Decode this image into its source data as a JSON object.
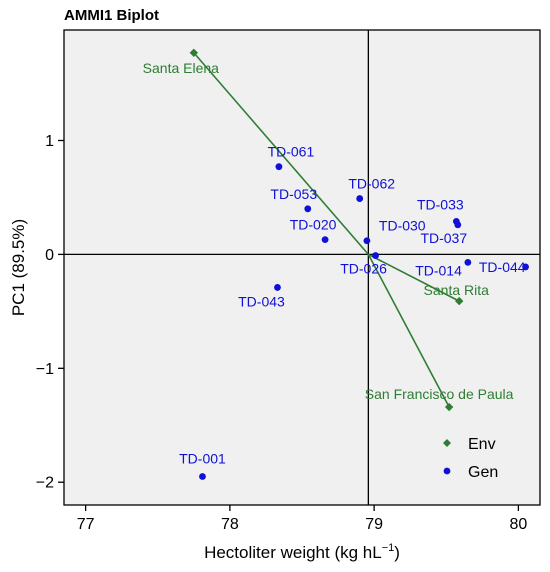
{
  "chart_data": {
    "type": "scatter",
    "title": "AMMI1 Biplot",
    "xlabel": "Hectoliter weight (kg hL",
    "xlabel_sup": "−1",
    "xlabel_close": ")",
    "ylabel": "PC1 (89.5%)",
    "xlim": [
      76.85,
      80.15
    ],
    "ylim": [
      -2.2,
      1.97
    ],
    "x_ticks": [
      77,
      78,
      79,
      80
    ],
    "y_ticks": [
      -2,
      -1,
      0,
      1
    ],
    "x_tick_labels": [
      "77",
      "78",
      "79",
      "80"
    ],
    "y_tick_labels": [
      "−2",
      "−1",
      "0",
      "1"
    ],
    "grand_mean": 78.96,
    "plot_background": "#f0f0f0",
    "legend": {
      "position": "bottom-right",
      "entries": [
        {
          "label": "Env",
          "color": "#2e7d32",
          "marker": "diamond"
        },
        {
          "label": "Gen",
          "color": "#1010d8",
          "marker": "circle"
        }
      ]
    },
    "series": [
      {
        "name": "Gen",
        "color": "#1010d8",
        "points": [
          {
            "label": "TD-001",
            "x": 77.81,
            "y": -1.95
          },
          {
            "label": "TD-014",
            "x": 79.65,
            "y": -0.07
          },
          {
            "label": "TD-020",
            "x": 78.66,
            "y": 0.13
          },
          {
            "label": "TD-026",
            "x": 79.01,
            "y": -0.01
          },
          {
            "label": "TD-030",
            "x": 78.95,
            "y": 0.12
          },
          {
            "label": "TD-033",
            "x": 79.57,
            "y": 0.29
          },
          {
            "label": "TD-037",
            "x": 79.58,
            "y": 0.26
          },
          {
            "label": "TD-043",
            "x": 78.33,
            "y": -0.29
          },
          {
            "label": "TD-044",
            "x": 80.05,
            "y": -0.11
          },
          {
            "label": "TD-053",
            "x": 78.54,
            "y": 0.4
          },
          {
            "label": "TD-061",
            "x": 78.34,
            "y": 0.77
          },
          {
            "label": "TD-062",
            "x": 78.9,
            "y": 0.49
          }
        ]
      },
      {
        "name": "Env",
        "color": "#2e7d32",
        "points": [
          {
            "label": "Santa Elena",
            "x": 77.75,
            "y": 1.77
          },
          {
            "label": "Santa Rita",
            "x": 79.59,
            "y": -0.41
          },
          {
            "label": "San Francisco de Paula",
            "x": 79.52,
            "y": -1.34
          }
        ]
      }
    ]
  }
}
